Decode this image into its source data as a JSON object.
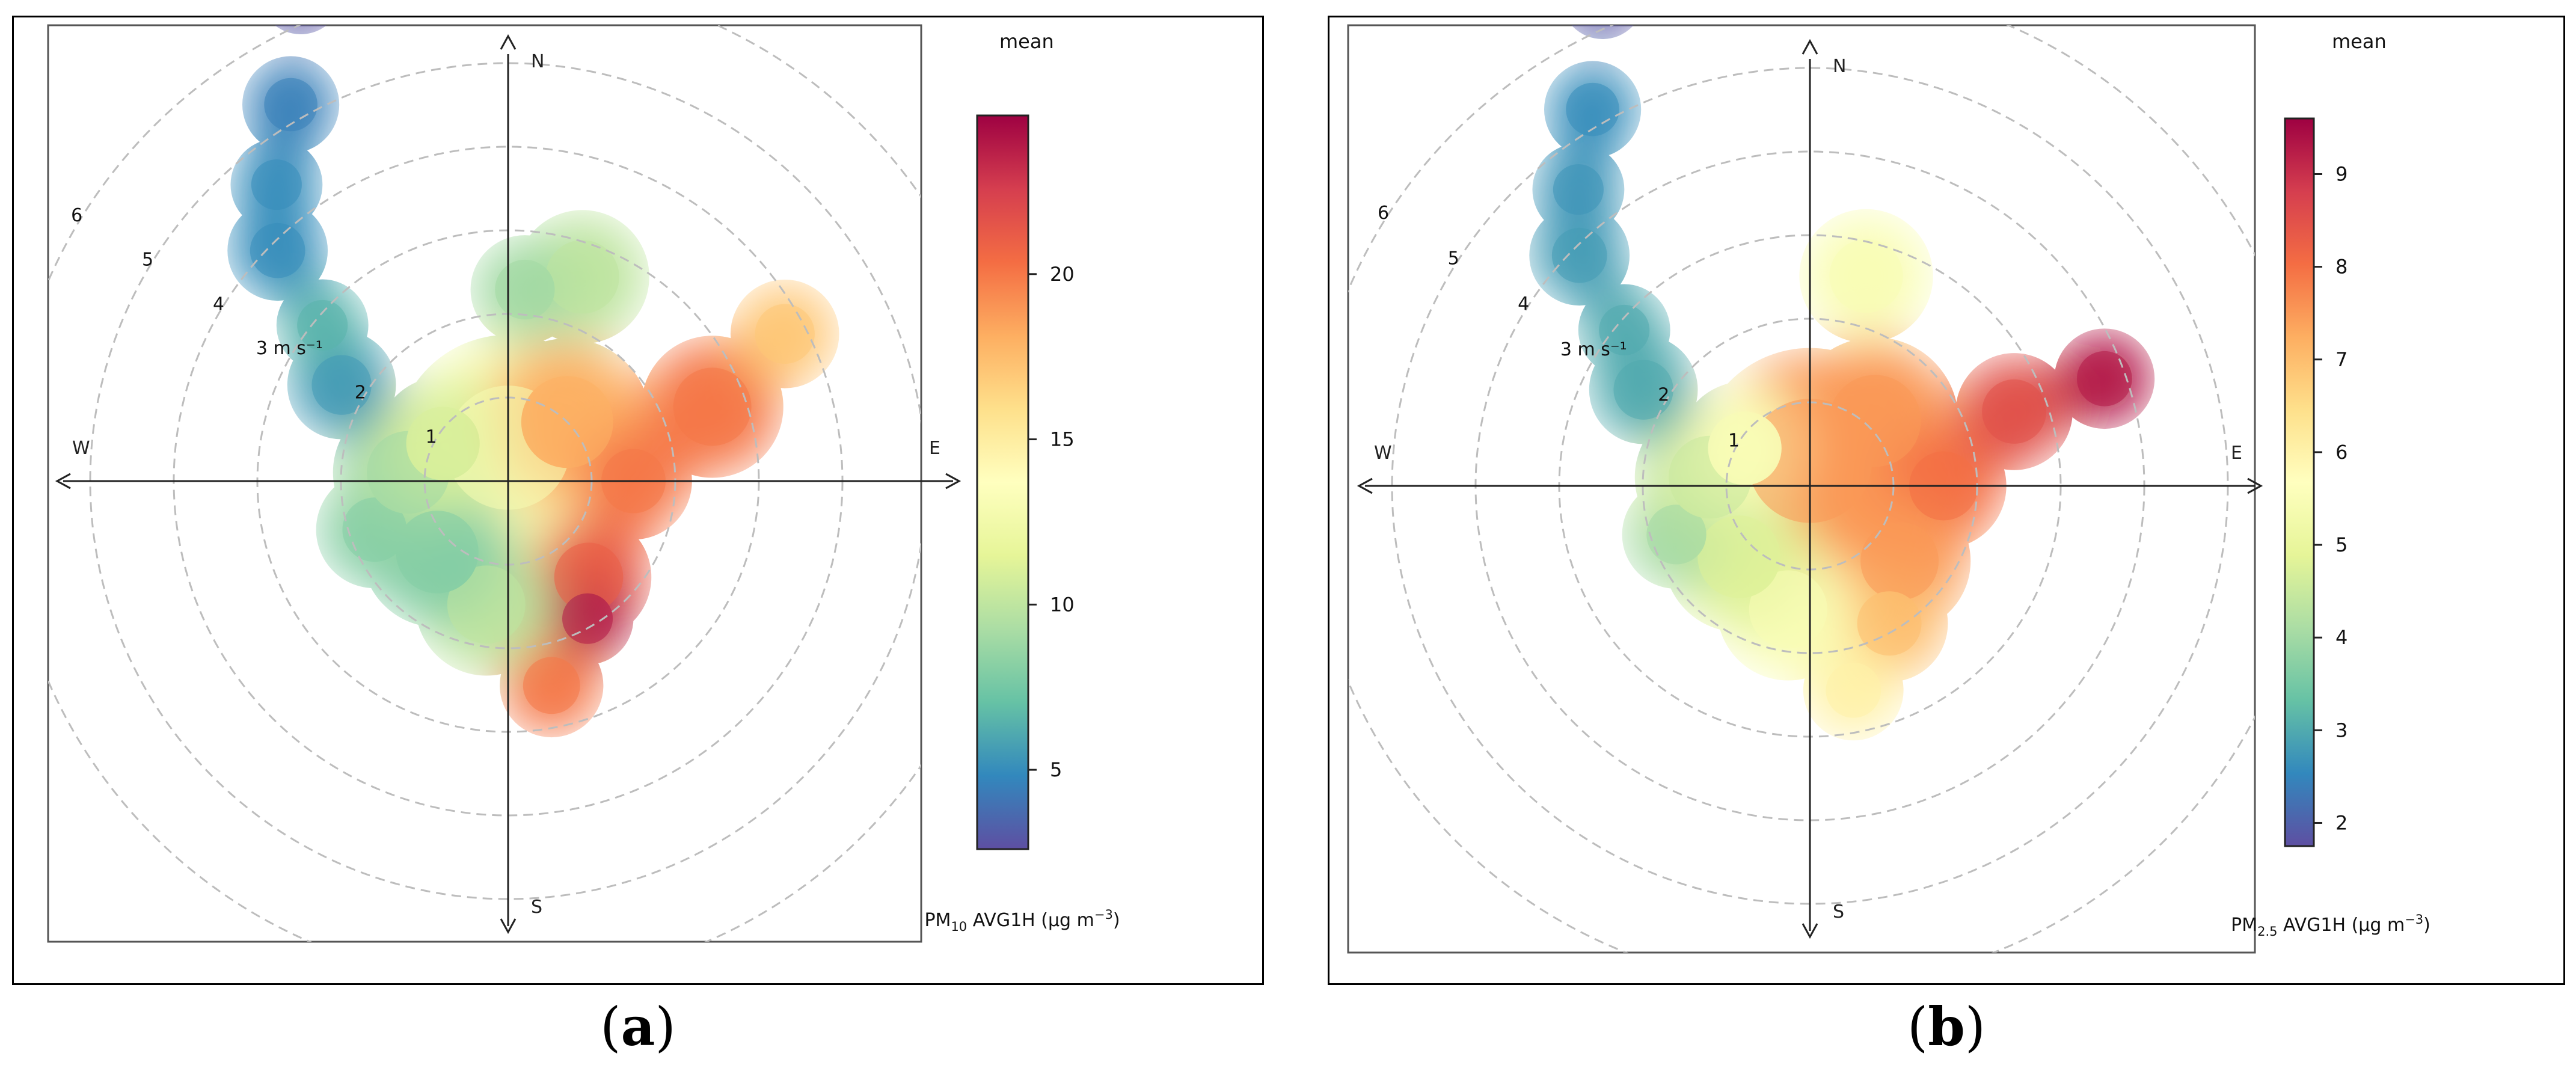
{
  "chart_data": [
    {
      "type": "polar-heatmap",
      "panel_caption": "a",
      "statistic_label": "mean",
      "colorbar": {
        "label": "PM10 AVG1H (µg m⁻³)",
        "label_parts": {
          "pre": "PM",
          "sub": "10",
          "post": " AVG1H (µg m",
          "sup": "−3",
          "end": ")"
        },
        "ticks": [
          5,
          10,
          15,
          20
        ],
        "range": [
          2.6,
          24.8
        ],
        "palette": [
          "#5e4fa2",
          "#3288bd",
          "#66c2a5",
          "#abdda4",
          "#e6f598",
          "#ffffbf",
          "#fee08b",
          "#fdae61",
          "#f46d43",
          "#d53e4f",
          "#9e0142"
        ]
      },
      "radial_axis": {
        "unit": "m s⁻¹",
        "labels": [
          "1",
          "2",
          "3 m s⁻¹",
          "4",
          "5",
          "6"
        ],
        "values": [
          1,
          2,
          3,
          4,
          5,
          6
        ],
        "max": 6.5
      },
      "compass": {
        "N": "N",
        "E": "E",
        "S": "S",
        "W": "W"
      },
      "blobs": [
        {
          "dir_deg": 0,
          "ws": 0.4,
          "r": 1.35,
          "value": 13
        },
        {
          "dir_deg": 45,
          "ws": 1.0,
          "r": 1.0,
          "value": 18
        },
        {
          "dir_deg": 90,
          "ws": 1.5,
          "r": 0.7,
          "value": 20
        },
        {
          "dir_deg": 70,
          "ws": 2.6,
          "r": 0.85,
          "value": 20
        },
        {
          "dir_deg": 62,
          "ws": 3.75,
          "r": 0.65,
          "value": 17
        },
        {
          "dir_deg": 20,
          "ws": 2.6,
          "r": 0.8,
          "value": 10
        },
        {
          "dir_deg": 5,
          "ws": 2.3,
          "r": 0.65,
          "value": 9
        },
        {
          "dir_deg": 140,
          "ws": 1.5,
          "r": 0.75,
          "value": 21
        },
        {
          "dir_deg": 150,
          "ws": 1.9,
          "r": 0.55,
          "value": 24
        },
        {
          "dir_deg": 168,
          "ws": 2.5,
          "r": 0.62,
          "value": 20
        },
        {
          "dir_deg": 190,
          "ws": 1.5,
          "r": 0.85,
          "value": 10
        },
        {
          "dir_deg": 225,
          "ws": 1.2,
          "r": 0.9,
          "value": 8
        },
        {
          "dir_deg": 250,
          "ws": 1.7,
          "r": 0.7,
          "value": 8
        },
        {
          "dir_deg": 275,
          "ws": 1.2,
          "r": 0.9,
          "value": 9
        },
        {
          "dir_deg": 300,
          "ws": 0.9,
          "r": 0.8,
          "value": 11
        },
        {
          "dir_deg": 300,
          "ws": 2.3,
          "r": 0.65,
          "value": 5.5
        },
        {
          "dir_deg": 310,
          "ws": 2.9,
          "r": 0.55,
          "value": 6.5
        },
        {
          "dir_deg": 315,
          "ws": 3.9,
          "r": 0.6,
          "value": 5
        },
        {
          "dir_deg": 322,
          "ws": 4.5,
          "r": 0.55,
          "value": 5
        },
        {
          "dir_deg": 330,
          "ws": 5.2,
          "r": 0.58,
          "value": 4.5
        },
        {
          "dir_deg": 337,
          "ws": 6.35,
          "r": 0.5,
          "value": 2.6
        }
      ]
    },
    {
      "type": "polar-heatmap",
      "panel_caption": "b",
      "statistic_label": "mean",
      "colorbar": {
        "label": "PM2.5 AVG1H (µg m⁻³)",
        "label_parts": {
          "pre": "PM",
          "sub": "2.5",
          "post": " AVG1H (µg m",
          "sup": "−3",
          "end": ")"
        },
        "ticks": [
          2,
          3,
          4,
          5,
          6,
          7,
          8,
          9
        ],
        "range": [
          1.75,
          9.6
        ],
        "palette": [
          "#5e4fa2",
          "#3288bd",
          "#66c2a5",
          "#abdda4",
          "#e6f598",
          "#ffffbf",
          "#fee08b",
          "#fdae61",
          "#f46d43",
          "#d53e4f",
          "#9e0142"
        ]
      },
      "radial_axis": {
        "unit": "m s⁻¹",
        "labels": [
          "1",
          "2",
          "3 m s⁻¹",
          "4",
          "5",
          "6"
        ],
        "values": [
          1,
          2,
          3,
          4,
          5,
          6
        ],
        "max": 6.5
      },
      "compass": {
        "N": "N",
        "E": "E",
        "S": "S",
        "W": "W"
      },
      "blobs": [
        {
          "dir_deg": 0,
          "ws": 0.3,
          "r": 1.35,
          "value": 7.5
        },
        {
          "dir_deg": 45,
          "ws": 1.1,
          "r": 1.0,
          "value": 7.5
        },
        {
          "dir_deg": 90,
          "ws": 1.6,
          "r": 0.75,
          "value": 8
        },
        {
          "dir_deg": 70,
          "ws": 2.6,
          "r": 0.7,
          "value": 8.5
        },
        {
          "dir_deg": 70,
          "ws": 3.75,
          "r": 0.6,
          "value": 9.3
        },
        {
          "dir_deg": 15,
          "ws": 2.6,
          "r": 0.8,
          "value": 5.5
        },
        {
          "dir_deg": 130,
          "ws": 1.4,
          "r": 0.85,
          "value": 7.5
        },
        {
          "dir_deg": 150,
          "ws": 1.9,
          "r": 0.7,
          "value": 7
        },
        {
          "dir_deg": 168,
          "ws": 2.5,
          "r": 0.6,
          "value": 6
        },
        {
          "dir_deg": 190,
          "ws": 1.5,
          "r": 0.85,
          "value": 5.5
        },
        {
          "dir_deg": 225,
          "ws": 1.2,
          "r": 0.9,
          "value": 4.8
        },
        {
          "dir_deg": 250,
          "ws": 1.7,
          "r": 0.65,
          "value": 4
        },
        {
          "dir_deg": 275,
          "ws": 1.2,
          "r": 0.9,
          "value": 4.5
        },
        {
          "dir_deg": 300,
          "ws": 0.9,
          "r": 0.8,
          "value": 5.5
        },
        {
          "dir_deg": 300,
          "ws": 2.3,
          "r": 0.65,
          "value": 3
        },
        {
          "dir_deg": 310,
          "ws": 2.9,
          "r": 0.55,
          "value": 3
        },
        {
          "dir_deg": 315,
          "ws": 3.9,
          "r": 0.6,
          "value": 2.8
        },
        {
          "dir_deg": 322,
          "ws": 4.5,
          "r": 0.55,
          "value": 2.7
        },
        {
          "dir_deg": 330,
          "ws": 5.2,
          "r": 0.58,
          "value": 2.6
        },
        {
          "dir_deg": 337,
          "ws": 6.35,
          "r": 0.5,
          "value": 1.8
        }
      ]
    }
  ]
}
